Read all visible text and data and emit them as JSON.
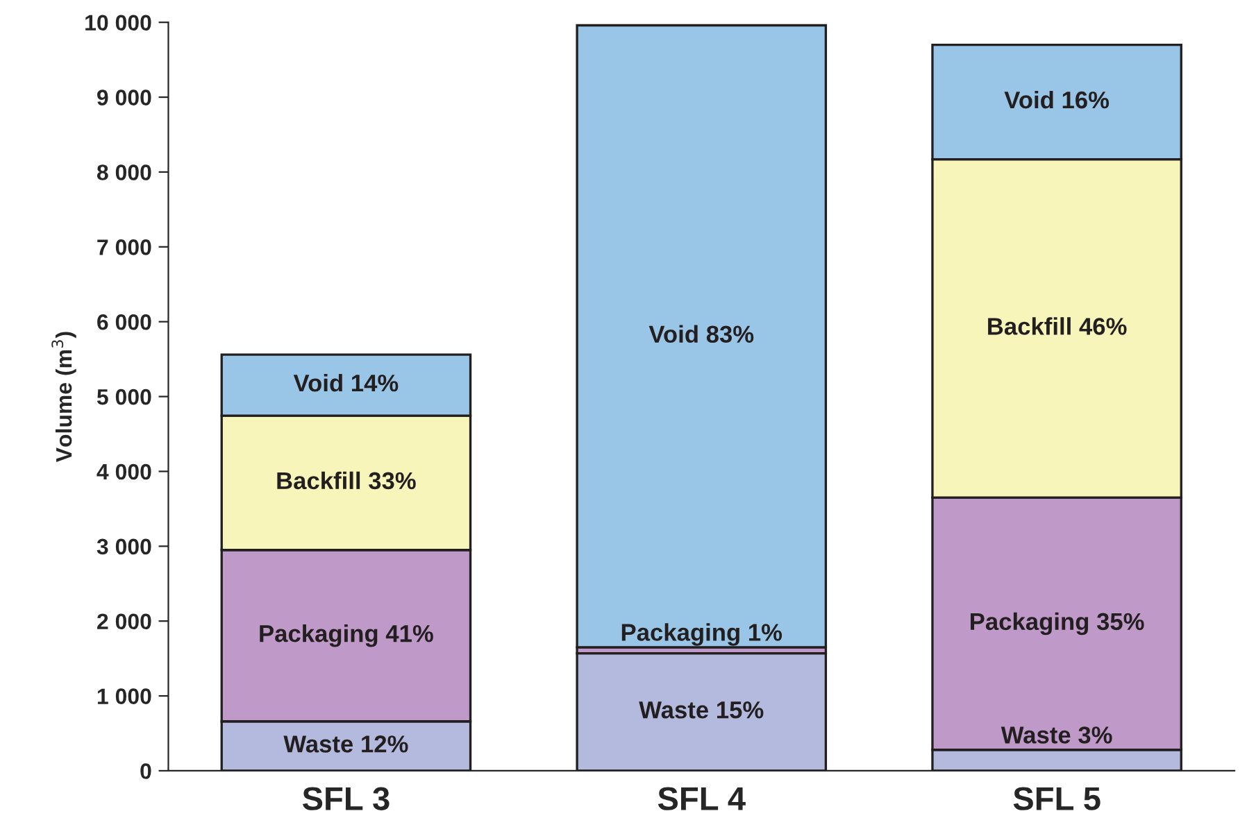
{
  "chart_data": {
    "type": "bar",
    "stacked": true,
    "ylabel": "Volume (m$^{3}$)",
    "categories": [
      "SFL 3",
      "SFL 4",
      "SFL 5"
    ],
    "series": [
      {
        "color": "#b4b9de",
        "values": [
          660,
          1570,
          280
        ],
        "value_labels": [
          "Waste 12%",
          "Waste 15%",
          "Waste 3%"
        ]
      },
      {
        "color": "#bf99c8",
        "values": [
          2290,
          80,
          3370
        ],
        "value_labels": [
          "Packaging 41%",
          "Packaging 1%",
          "Packaging 35%"
        ]
      },
      {
        "color": "#f7f5b9",
        "values": [
          1795,
          0,
          4520
        ],
        "value_labels": [
          "Backfill 33%",
          null,
          "Backfill 46%"
        ]
      },
      {
        "color": "#99c5e6",
        "values": [
          815,
          8310,
          1530
        ],
        "value_labels": [
          "Void 14%",
          "Void 83%",
          "Void 16%"
        ]
      }
    ],
    "ylim": [
      0,
      10000
    ],
    "yticks": [
      0,
      {
        "value": 1000,
        "label": "1 000"
      },
      {
        "value": 2000,
        "label": "2 000"
      },
      {
        "value": 3000,
        "label": "3 000"
      },
      {
        "value": 4000,
        "label": "4 000"
      },
      {
        "value": 5000,
        "label": "5 000"
      },
      {
        "value": 6000,
        "label": "6 000"
      },
      {
        "value": 7000,
        "label": "7 000"
      },
      {
        "value": 8000,
        "label": "8 000"
      },
      {
        "value": 9000,
        "label": "9 000"
      },
      {
        "value": 10000,
        "label": "10 000"
      }
    ],
    "grid": false,
    "legend": false
  }
}
